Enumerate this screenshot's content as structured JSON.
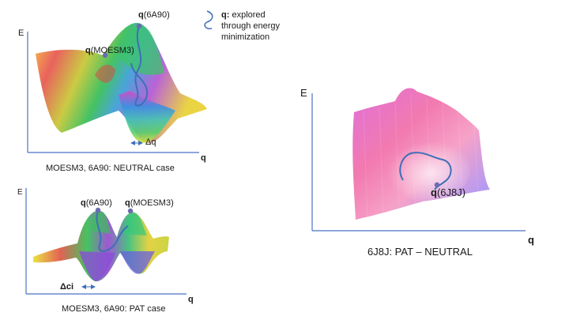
{
  "panel_neutral": {
    "axis_e": "E",
    "axis_q": "q",
    "q_symbol": "q",
    "label_6a90": "(6A90)",
    "label_moesm3": "(MOESM3)",
    "delta_label": "Δq",
    "caption": "MOESM3, 6A90: NEUTRAL case"
  },
  "panel_pat": {
    "axis_e": "E",
    "axis_q": "q",
    "q_symbol": "q",
    "label_6a90": "(6A90)",
    "label_moesm3": "(MOESM3)",
    "delta_label": "Δci",
    "caption": "MOESM3, 6A90: PAT case"
  },
  "panel_6j8j": {
    "axis_e": "E",
    "axis_q": "q",
    "q_symbol": "q",
    "label_6j8j": "(6J8J)",
    "caption": "6J8J: PAT – NEUTRAL"
  },
  "legend": {
    "q_symbol": "q:",
    "line1": "explored",
    "line2": "through energy",
    "line3": "minimization"
  },
  "colors": {
    "axis": "#4a72c4",
    "path": "#3f6fb7",
    "marker": "#6b6bb0"
  }
}
